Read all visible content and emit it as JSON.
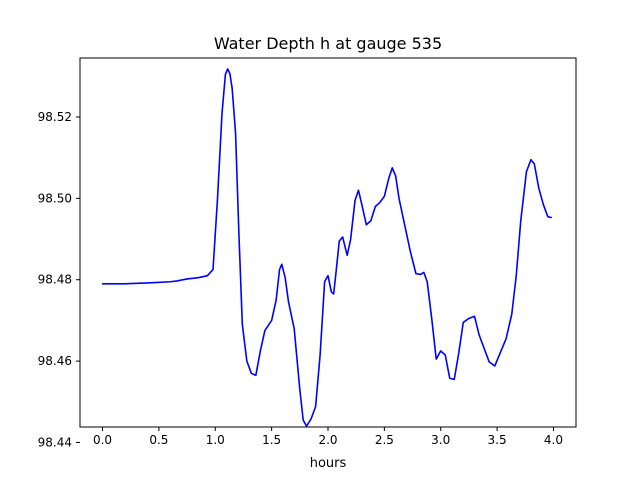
{
  "chart_data": {
    "type": "line",
    "title": "Water Depth h at gauge 535",
    "xlabel": "hours",
    "ylabel": "",
    "xlim": [
      -0.2,
      4.2
    ],
    "ylim": [
      98.4438,
      98.5345
    ],
    "xticks": [
      0.0,
      0.5,
      1.0,
      1.5,
      2.0,
      2.5,
      3.0,
      3.5,
      4.0
    ],
    "xtick_labels": [
      "0.0",
      "0.5",
      "1.0",
      "1.5",
      "2.0",
      "2.5",
      "3.0",
      "3.5",
      "4.0"
    ],
    "yticks": [
      98.44,
      98.46,
      98.48,
      98.5,
      98.52
    ],
    "ytick_labels": [
      "98.44",
      "98.46",
      "98.48",
      "98.50",
      "98.52"
    ],
    "grid": false,
    "series": [
      {
        "color": "#0000ff",
        "x": [
          0.0,
          0.2,
          0.4,
          0.6,
          0.66,
          0.75,
          0.85,
          0.93,
          0.98,
          1.02,
          1.06,
          1.09,
          1.11,
          1.13,
          1.15,
          1.18,
          1.21,
          1.24,
          1.28,
          1.32,
          1.36,
          1.4,
          1.44,
          1.5,
          1.54,
          1.57,
          1.59,
          1.62,
          1.65,
          1.7,
          1.75,
          1.78,
          1.81,
          1.85,
          1.89,
          1.93,
          1.97,
          2.0,
          2.03,
          2.05,
          2.07,
          2.1,
          2.13,
          2.17,
          2.2,
          2.24,
          2.27,
          2.3,
          2.34,
          2.38,
          2.42,
          2.46,
          2.5,
          2.54,
          2.57,
          2.6,
          2.63,
          2.68,
          2.73,
          2.78,
          2.82,
          2.85,
          2.88,
          2.92,
          2.96,
          3.0,
          3.04,
          3.08,
          3.12,
          3.16,
          3.2,
          3.25,
          3.3,
          3.34,
          3.38,
          3.43,
          3.48,
          3.52,
          3.58,
          3.63,
          3.67,
          3.71,
          3.76,
          3.8,
          3.83,
          3.87,
          3.91,
          3.95,
          3.98
        ],
        "y": [
          98.479,
          98.479,
          98.4792,
          98.4795,
          98.4797,
          98.4802,
          98.4805,
          98.481,
          98.4825,
          98.5,
          98.521,
          98.5305,
          98.5318,
          98.5306,
          98.527,
          98.516,
          98.491,
          98.469,
          98.46,
          98.457,
          98.4565,
          98.4625,
          98.4675,
          98.47,
          98.475,
          98.4825,
          98.4838,
          98.4805,
          98.4745,
          98.468,
          98.453,
          98.4455,
          98.444,
          98.4458,
          98.4488,
          98.4615,
          98.4795,
          98.481,
          98.477,
          98.4765,
          98.4815,
          98.4895,
          98.4905,
          98.486,
          98.4898,
          98.4995,
          98.502,
          98.4985,
          98.4935,
          98.4945,
          98.498,
          98.499,
          98.5005,
          98.505,
          98.5075,
          98.5055,
          98.5,
          98.4935,
          98.487,
          98.4815,
          98.4813,
          98.4818,
          98.4795,
          98.4705,
          98.4605,
          98.4625,
          98.4615,
          98.4558,
          98.4555,
          98.462,
          98.4695,
          98.4705,
          98.471,
          98.4665,
          98.4635,
          98.4598,
          98.4588,
          98.4615,
          98.4655,
          98.4715,
          98.481,
          98.4945,
          98.5065,
          98.5095,
          98.5085,
          98.5025,
          98.4985,
          98.4955,
          98.4953
        ]
      }
    ]
  }
}
